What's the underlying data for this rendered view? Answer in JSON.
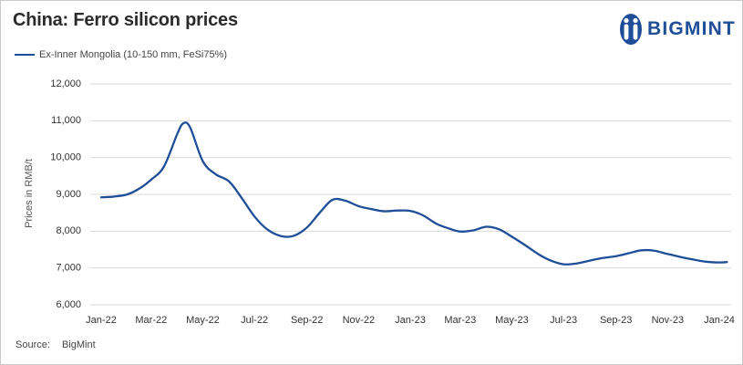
{
  "colors": {
    "series": "#1f4e99",
    "gridline": "#d9d9d9",
    "brand": "#1f4e99"
  },
  "icons": {
    "logo": "bigmint-figure-icon"
  },
  "logo_text": "BIGMINT",
  "source": {
    "label": "Source:",
    "value": "BigMint"
  },
  "chart_data": {
    "type": "line",
    "title": "China: Ferro silicon prices",
    "xlabel": "",
    "ylabel": "Prices in RMB/t",
    "ylim": [
      6000,
      12000
    ],
    "xlim": [
      "2022-01",
      "2024-01"
    ],
    "grid": "horizontal",
    "legend_position": "top-left",
    "x_tick_labels": [
      "Jan-22",
      "Mar-22",
      "May-22",
      "Jul-22",
      "Sep-22",
      "Nov-22",
      "Jan-23",
      "Mar-23",
      "May-23",
      "Jul-23",
      "Sep-23",
      "Nov-23",
      "Jan-24"
    ],
    "y_tick_labels": [
      "6,000",
      "7,000",
      "8,000",
      "9,000",
      "10,000",
      "11,000",
      "12,000"
    ],
    "y_ticks": [
      6000,
      7000,
      8000,
      9000,
      10000,
      11000,
      12000
    ],
    "series": [
      {
        "name": "Ex-Inner Mongolia (10-150 mm, FeSi75%)",
        "x": [
          "2022-01-01",
          "2022-01-16",
          "2022-02-01",
          "2022-02-16",
          "2022-03-01",
          "2022-03-16",
          "2022-04-01",
          "2022-04-08",
          "2022-04-16",
          "2022-05-01",
          "2022-05-16",
          "2022-06-01",
          "2022-06-16",
          "2022-07-01",
          "2022-07-16",
          "2022-08-01",
          "2022-08-16",
          "2022-09-01",
          "2022-09-16",
          "2022-10-01",
          "2022-10-16",
          "2022-11-01",
          "2022-11-16",
          "2022-12-01",
          "2022-12-16",
          "2023-01-01",
          "2023-01-16",
          "2023-02-01",
          "2023-02-16",
          "2023-03-01",
          "2023-03-16",
          "2023-04-01",
          "2023-04-16",
          "2023-05-01",
          "2023-05-16",
          "2023-06-01",
          "2023-06-16",
          "2023-07-01",
          "2023-07-16",
          "2023-08-01",
          "2023-08-16",
          "2023-09-01",
          "2023-09-16",
          "2023-10-01",
          "2023-10-16",
          "2023-11-01",
          "2023-11-16",
          "2023-12-01",
          "2023-12-16",
          "2024-01-01",
          "2024-01-10"
        ],
        "values": [
          8920,
          8940,
          9000,
          9170,
          9400,
          9750,
          10650,
          10930,
          10820,
          9900,
          9550,
          9350,
          8900,
          8400,
          8050,
          7870,
          7870,
          8100,
          8500,
          8850,
          8830,
          8680,
          8600,
          8540,
          8560,
          8550,
          8430,
          8200,
          8070,
          7990,
          8020,
          8120,
          8050,
          7850,
          7630,
          7380,
          7200,
          7100,
          7120,
          7200,
          7270,
          7320,
          7400,
          7480,
          7470,
          7380,
          7300,
          7230,
          7170,
          7150,
          7160
        ]
      }
    ]
  }
}
